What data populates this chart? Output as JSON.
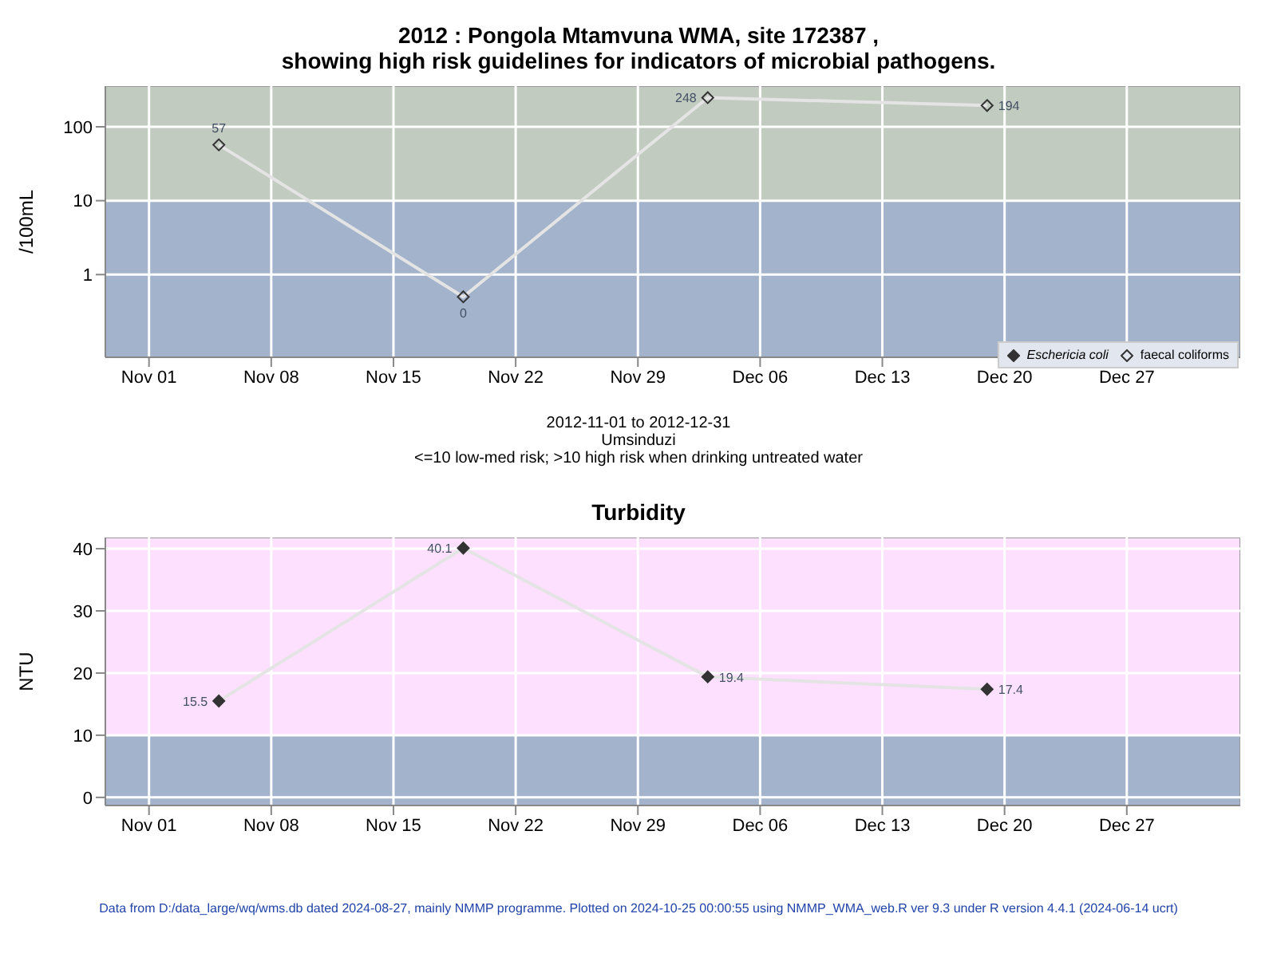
{
  "chart_data": [
    {
      "type": "line",
      "title": "2012 : Pongola Mtamvuna WMA, site 172387 ,",
      "subtitle": "showing high risk guidelines for indicators of microbial pathogens.",
      "ylabel": "/100mL",
      "x": [
        "2012-11-05",
        "2012-11-19",
        "2012-12-03",
        "2012-12-19"
      ],
      "series": [
        {
          "name": "Eschericia coli",
          "color": "#333333",
          "values": [
            null,
            null,
            null,
            null
          ]
        },
        {
          "name": "faecal coliforms",
          "color": "#333333",
          "values": [
            57,
            0.5,
            248,
            194
          ],
          "value_labels": [
            "57",
            "0",
            "248",
            "194"
          ]
        }
      ],
      "log": "y",
      "ylim": [
        0.076,
        355
      ],
      "yticks": [
        1,
        10,
        100
      ],
      "xlim": [
        "2012-10-29T12:00",
        "2013-01-02T12:00"
      ],
      "xticks": [
        {
          "value": "2012-11-01",
          "label": "Nov 01"
        },
        {
          "value": "2012-11-08",
          "label": "Nov 08"
        },
        {
          "value": "2012-11-15",
          "label": "Nov 15"
        },
        {
          "value": "2012-11-22",
          "label": "Nov 22"
        },
        {
          "value": "2012-11-29",
          "label": "Nov 29"
        },
        {
          "value": "2012-12-06",
          "label": "Dec 06"
        },
        {
          "value": "2012-12-13",
          "label": "Dec 13"
        },
        {
          "value": "2012-12-20",
          "label": "Dec 20"
        },
        {
          "value": "2012-12-27",
          "label": "Dec 27"
        }
      ],
      "bands": [
        {
          "axis": "y",
          "from": 10,
          "to": 355,
          "color": "#c2cbc0"
        },
        {
          "axis": "y",
          "from": 0.076,
          "to": 10,
          "color": "#a3b3cb"
        }
      ],
      "grid": true,
      "legend": "bottom right",
      "marker": "diamond",
      "annotations": [
        "2012-11-01 to 2012-12-31",
        "Umsinduzi",
        "<=10 low-med risk; >10 high risk when drinking untreated water"
      ]
    },
    {
      "type": "line",
      "title": "Turbidity",
      "ylabel": "NTU",
      "x": [
        "2012-11-05",
        "2012-11-19",
        "2012-12-03",
        "2012-12-19"
      ],
      "series": [
        {
          "color": "#333333",
          "values": [
            15.5,
            40.1,
            19.4,
            17.4
          ]
        }
      ],
      "ylim": [
        -1.3,
        41.8
      ],
      "yticks": [
        0,
        10,
        20,
        30,
        40
      ],
      "xlim": [
        "2012-10-29T12:00",
        "2013-01-02T12:00"
      ],
      "xticks": [
        {
          "value": "2012-11-01",
          "label": "Nov 01"
        },
        {
          "value": "2012-11-08",
          "label": "Nov 08"
        },
        {
          "value": "2012-11-15",
          "label": "Nov 15"
        },
        {
          "value": "2012-11-22",
          "label": "Nov 22"
        },
        {
          "value": "2012-11-29",
          "label": "Nov 29"
        },
        {
          "value": "2012-12-06",
          "label": "Dec 06"
        },
        {
          "value": "2012-12-13",
          "label": "Dec 13"
        },
        {
          "value": "2012-12-20",
          "label": "Dec 20"
        },
        {
          "value": "2012-12-27",
          "label": "Dec 27"
        }
      ],
      "bands": [
        {
          "axis": "y",
          "from": 10,
          "to": 41.8,
          "color": "#fde0fd"
        },
        {
          "axis": "y",
          "from": -1.3,
          "to": 10,
          "color": "#a3b3cb"
        }
      ],
      "grid": true,
      "marker": "diamond",
      "data_labels": true,
      "annotations": [
        "Data from D:/data_large/wq/wms.db dated 2024-08-27, mainly NMMP programme. Plotted on 2024-10-25 00:00:55 using NMMP_WMA_web.R ver 9.3 under R version 4.4.1 (2024-06-14 ucrt)"
      ]
    }
  ]
}
